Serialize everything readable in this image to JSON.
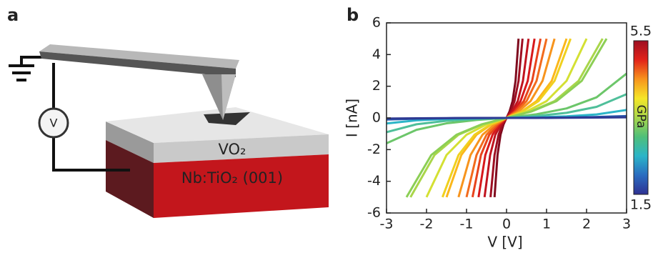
{
  "panel_a": {
    "label": "a",
    "meter": "V",
    "film": "VO₂",
    "substrate": "Nb:TiO₂ (001)"
  },
  "chart_data": {
    "type": "line",
    "panel_label": "b",
    "x_label": "V [V]",
    "y_label": "I [nA]",
    "xlim": [
      -3,
      3
    ],
    "xticks": [
      -3,
      -2,
      -1,
      0,
      1,
      2,
      3
    ],
    "ylim": [
      -6,
      6
    ],
    "yticks": [
      -6,
      -4,
      -2,
      0,
      2,
      4,
      6
    ],
    "colorbar": {
      "range": [
        1.5,
        5.5
      ],
      "label": "GPa",
      "colors": [
        "#2e3192",
        "#2a6cc0",
        "#2bb5c8",
        "#4fbf7a",
        "#a9d64a",
        "#f5e628",
        "#f7941d",
        "#e2231a",
        "#9e0f22"
      ]
    },
    "series": [
      {
        "color": "#7f0a1e",
        "x": [
          -0.3,
          -0.225,
          -0.15,
          -0.075,
          0,
          0.075,
          0.15,
          0.225,
          0.3
        ],
        "values": [
          -5,
          -2.34,
          -1.06,
          -0.41,
          0,
          0.41,
          1.06,
          2.34,
          5
        ]
      },
      {
        "color": "#9e0f22",
        "x": [
          -0.4,
          -0.3,
          -0.2,
          -0.1,
          0,
          0.1,
          0.2,
          0.3,
          0.4
        ],
        "values": [
          -5,
          -2.34,
          -1.06,
          -0.41,
          0,
          0.41,
          1.06,
          2.34,
          5
        ]
      },
      {
        "color": "#c0141f",
        "x": [
          -0.55,
          -0.41,
          -0.28,
          -0.14,
          0,
          0.14,
          0.28,
          0.41,
          0.55
        ],
        "values": [
          -5,
          -2.34,
          -1.06,
          -0.41,
          0,
          0.41,
          1.06,
          2.34,
          5
        ]
      },
      {
        "color": "#d7191c",
        "x": [
          -0.7,
          -0.53,
          -0.35,
          -0.18,
          0,
          0.18,
          0.35,
          0.53,
          0.7
        ],
        "values": [
          -5,
          -2.34,
          -1.06,
          -0.41,
          0,
          0.41,
          1.06,
          2.34,
          5
        ]
      },
      {
        "color": "#e8431c",
        "x": [
          -0.85,
          -0.64,
          -0.43,
          -0.21,
          0,
          0.21,
          0.43,
          0.64,
          0.85
        ],
        "values": [
          -5,
          -2.34,
          -1.06,
          -0.41,
          0,
          0.41,
          1.06,
          2.34,
          5
        ]
      },
      {
        "color": "#f26b1d",
        "x": [
          -1,
          -0.75,
          -0.5,
          -0.25,
          0,
          0.25,
          0.5,
          0.75,
          1
        ],
        "values": [
          -5,
          -2.34,
          -1.06,
          -0.41,
          0,
          0.41,
          1.06,
          2.34,
          5
        ]
      },
      {
        "color": "#f7941d",
        "x": [
          -1.2,
          -0.9,
          -0.6,
          -0.3,
          0,
          0.3,
          0.6,
          0.9,
          1.2
        ],
        "values": [
          -5,
          -2.34,
          -1.06,
          -0.41,
          0,
          0.41,
          1.06,
          2.34,
          5
        ]
      },
      {
        "color": "#fbb71a",
        "x": [
          -1.5,
          -1.13,
          -0.75,
          -0.38,
          0,
          0.38,
          0.75,
          1.13,
          1.5
        ],
        "values": [
          -5,
          -2.34,
          -1.06,
          -0.41,
          0,
          0.41,
          1.06,
          2.34,
          5
        ]
      },
      {
        "color": "#f0d01e",
        "x": [
          -1.6,
          -1.2,
          -0.8,
          -0.4,
          0,
          0.4,
          0.8,
          1.2,
          1.6
        ],
        "values": [
          -5,
          -2.34,
          -1.06,
          -0.41,
          0,
          0.41,
          1.06,
          2.34,
          5
        ]
      },
      {
        "color": "#d4e033",
        "x": [
          -2,
          -1.5,
          -1,
          -0.5,
          0,
          0.5,
          1,
          1.5,
          2
        ],
        "values": [
          -5,
          -2.34,
          -1.06,
          -0.41,
          0,
          0.41,
          1.06,
          2.34,
          5
        ]
      },
      {
        "color": "#a9d64a",
        "x": [
          -2.4,
          -1.8,
          -1.2,
          -0.6,
          0,
          0.6,
          1.2,
          1.8,
          2.4
        ],
        "values": [
          -5,
          -2.34,
          -1.06,
          -0.41,
          0,
          0.41,
          1.06,
          2.34,
          5
        ]
      },
      {
        "color": "#8ccf55",
        "x": [
          -2.5,
          -1.88,
          -1.25,
          -0.63,
          0,
          0.63,
          1.25,
          1.88,
          2.5
        ],
        "values": [
          -5,
          -2.34,
          -1.06,
          -0.41,
          0,
          0.41,
          1.06,
          2.34,
          5
        ]
      },
      {
        "color": "#6cc66a",
        "x": [
          -3,
          -2.25,
          -1.5,
          -0.75,
          0,
          0.75,
          1.5,
          2.25,
          3
        ],
        "values": [
          -1.6,
          -0.75,
          -0.34,
          -0.13,
          0,
          0.23,
          0.6,
          1.3,
          2.8
        ]
      },
      {
        "color": "#4fbf9a",
        "x": [
          -3,
          -2.25,
          -1.5,
          -0.75,
          0,
          0.75,
          1.5,
          2.25,
          3
        ],
        "values": [
          -0.9,
          -0.4,
          -0.18,
          -0.07,
          0,
          0.12,
          0.32,
          0.7,
          1.5
        ]
      },
      {
        "color": "#2cb5c8",
        "x": [
          -3,
          -2.25,
          -1.5,
          -0.75,
          0,
          0.75,
          1.5,
          2.25,
          3
        ],
        "values": [
          -0.35,
          -0.15,
          -0.07,
          -0.03,
          0,
          0.04,
          0.1,
          0.22,
          0.5
        ]
      },
      {
        "color": "#2a5cb0",
        "x": [
          -3,
          -2.25,
          -1.5,
          -0.75,
          0,
          0.75,
          1.5,
          2.25,
          3
        ],
        "values": [
          -0.1,
          -0.05,
          -0.02,
          -0.01,
          0,
          0.01,
          0.03,
          0.06,
          0.12
        ]
      },
      {
        "color": "#2e3a93",
        "x": [
          -3,
          -2.25,
          -1.5,
          -0.75,
          0,
          0.75,
          1.5,
          2.25,
          3
        ],
        "values": [
          -0.04,
          -0.02,
          -0.01,
          0,
          0,
          0,
          0.01,
          0.02,
          0.04
        ]
      }
    ]
  }
}
